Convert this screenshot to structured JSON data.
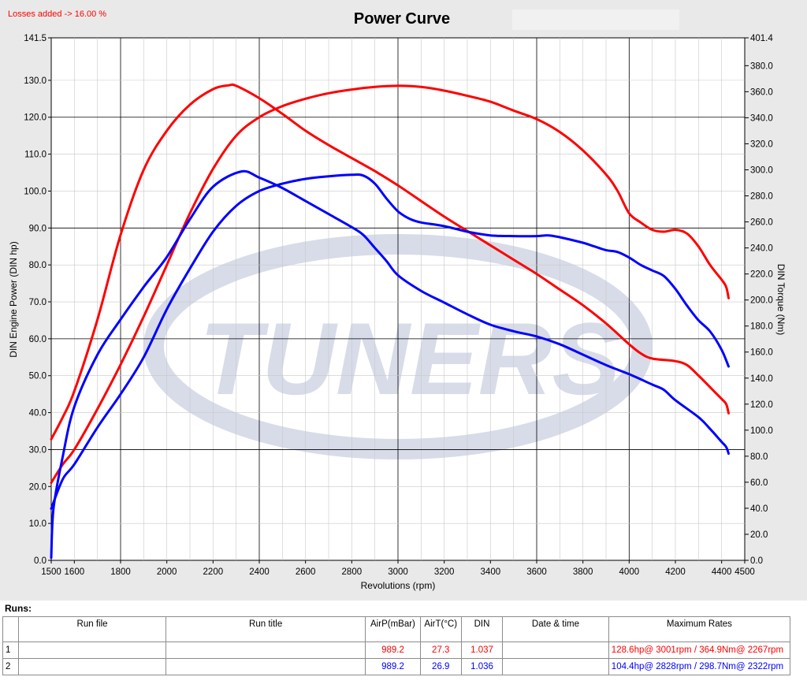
{
  "losses_note": "Losses added -> 16.00 %",
  "chart_data": {
    "type": "line",
    "title": "Power Curve",
    "xlabel": "Revolutions (rpm)",
    "ylabel_left": "DIN Engine Power (DIN hp)",
    "ylabel_right": "DIN Torque (Nm)",
    "xlim": [
      1500,
      4500
    ],
    "ylim_left": [
      0,
      141.5
    ],
    "ylim_right": [
      0,
      401.4
    ],
    "x_ticks": [
      "1500",
      "1600",
      "1800",
      "2000",
      "2200",
      "2400",
      "2600",
      "2800",
      "3000",
      "3200",
      "3400",
      "3600",
      "3800",
      "4000",
      "4200",
      "4400",
      "4500"
    ],
    "x_tick_values": [
      1500,
      1600,
      1800,
      2000,
      2200,
      2400,
      2600,
      2800,
      3000,
      3200,
      3400,
      3600,
      3800,
      4000,
      4200,
      4400,
      4500
    ],
    "y_left_ticks": [
      "0.0",
      "10.0",
      "20.0",
      "30.0",
      "40.0",
      "50.0",
      "60.0",
      "70.0",
      "80.0",
      "90.0",
      "100.0",
      "110.0",
      "120.0",
      "130.0",
      "141.5"
    ],
    "y_left_tick_values": [
      0,
      10,
      20,
      30,
      40,
      50,
      60,
      70,
      80,
      90,
      100,
      110,
      120,
      130,
      141.5
    ],
    "y_right_ticks": [
      "0.0",
      "20.0",
      "40.0",
      "60.0",
      "80.0",
      "100.0",
      "120.0",
      "140.0",
      "160.0",
      "180.0",
      "200.0",
      "220.0",
      "240.0",
      "260.0",
      "280.0",
      "300.0",
      "320.0",
      "340.0",
      "360.0",
      "380.0",
      "401.4"
    ],
    "y_right_tick_values": [
      0,
      20,
      40,
      60,
      80,
      100,
      120,
      140,
      160,
      180,
      200,
      220,
      240,
      260,
      280,
      300,
      320,
      340,
      360,
      380,
      401.4
    ],
    "grid": true,
    "series": [
      {
        "run": 1,
        "quantity": "power",
        "axis": "left",
        "color": "#ff0000",
        "points": [
          [
            1500,
            21
          ],
          [
            1550,
            26
          ],
          [
            1600,
            30
          ],
          [
            1700,
            41
          ],
          [
            1800,
            53
          ],
          [
            1900,
            66
          ],
          [
            2000,
            80
          ],
          [
            2100,
            94
          ],
          [
            2200,
            106
          ],
          [
            2300,
            115
          ],
          [
            2400,
            120
          ],
          [
            2500,
            123
          ],
          [
            2600,
            125
          ],
          [
            2700,
            126.5
          ],
          [
            2800,
            127.5
          ],
          [
            2900,
            128.2
          ],
          [
            3000,
            128.5
          ],
          [
            3100,
            128.2
          ],
          [
            3200,
            127.2
          ],
          [
            3300,
            125.8
          ],
          [
            3400,
            124.2
          ],
          [
            3500,
            121.8
          ],
          [
            3600,
            119.5
          ],
          [
            3700,
            116
          ],
          [
            3800,
            111
          ],
          [
            3900,
            104.5
          ],
          [
            3950,
            100
          ],
          [
            4000,
            94
          ],
          [
            4050,
            91.5
          ],
          [
            4100,
            89.5
          ],
          [
            4150,
            89
          ],
          [
            4200,
            89.5
          ],
          [
            4250,
            88.5
          ],
          [
            4300,
            85
          ],
          [
            4350,
            80
          ],
          [
            4400,
            76
          ],
          [
            4420,
            74
          ],
          [
            4430,
            71
          ]
        ]
      },
      {
        "run": 1,
        "quantity": "torque",
        "axis": "right",
        "color": "#ff0000",
        "points": [
          [
            1500,
            93
          ],
          [
            1550,
            110
          ],
          [
            1600,
            130
          ],
          [
            1700,
            185
          ],
          [
            1800,
            250
          ],
          [
            1900,
            300
          ],
          [
            2000,
            330
          ],
          [
            2100,
            350
          ],
          [
            2200,
            362
          ],
          [
            2267,
            364.9
          ],
          [
            2300,
            364.5
          ],
          [
            2400,
            355
          ],
          [
            2500,
            343
          ],
          [
            2600,
            330
          ],
          [
            2700,
            319
          ],
          [
            2800,
            309
          ],
          [
            2900,
            299
          ],
          [
            3000,
            288
          ],
          [
            3100,
            276
          ],
          [
            3200,
            264
          ],
          [
            3300,
            253
          ],
          [
            3400,
            242
          ],
          [
            3500,
            231
          ],
          [
            3600,
            220
          ],
          [
            3700,
            208
          ],
          [
            3800,
            196
          ],
          [
            3900,
            182
          ],
          [
            4000,
            166
          ],
          [
            4050,
            159
          ],
          [
            4100,
            155
          ],
          [
            4200,
            153
          ],
          [
            4250,
            150
          ],
          [
            4300,
            142
          ],
          [
            4350,
            133
          ],
          [
            4400,
            124
          ],
          [
            4420,
            120
          ],
          [
            4430,
            113
          ]
        ]
      },
      {
        "run": 2,
        "quantity": "power",
        "axis": "left",
        "color": "#0000ff",
        "points": [
          [
            1500,
            14
          ],
          [
            1550,
            22
          ],
          [
            1600,
            26
          ],
          [
            1700,
            36
          ],
          [
            1800,
            45
          ],
          [
            1900,
            55
          ],
          [
            2000,
            68
          ],
          [
            2100,
            79
          ],
          [
            2200,
            89
          ],
          [
            2300,
            96
          ],
          [
            2400,
            100
          ],
          [
            2500,
            102
          ],
          [
            2600,
            103.3
          ],
          [
            2700,
            104
          ],
          [
            2800,
            104.4
          ],
          [
            2850,
            104.2
          ],
          [
            2900,
            102
          ],
          [
            2950,
            98
          ],
          [
            3000,
            94.5
          ],
          [
            3050,
            92.5
          ],
          [
            3100,
            91.5
          ],
          [
            3200,
            90.5
          ],
          [
            3300,
            89
          ],
          [
            3400,
            88
          ],
          [
            3500,
            87.8
          ],
          [
            3600,
            87.8
          ],
          [
            3650,
            88
          ],
          [
            3700,
            87.5
          ],
          [
            3800,
            86
          ],
          [
            3850,
            85
          ],
          [
            3900,
            84
          ],
          [
            3950,
            83.5
          ],
          [
            4000,
            82
          ],
          [
            4050,
            80
          ],
          [
            4100,
            78.5
          ],
          [
            4150,
            77
          ],
          [
            4200,
            73.5
          ],
          [
            4250,
            69
          ],
          [
            4300,
            65
          ],
          [
            4350,
            62
          ],
          [
            4400,
            57
          ],
          [
            4430,
            52.5
          ]
        ]
      },
      {
        "run": 2,
        "quantity": "torque",
        "axis": "right",
        "color": "#0000ff",
        "points": [
          [
            1500,
            2
          ],
          [
            1510,
            40
          ],
          [
            1550,
            80
          ],
          [
            1600,
            118
          ],
          [
            1700,
            158
          ],
          [
            1800,
            185
          ],
          [
            1900,
            210
          ],
          [
            2000,
            233
          ],
          [
            2100,
            262
          ],
          [
            2200,
            287
          ],
          [
            2322,
            298.7
          ],
          [
            2400,
            294
          ],
          [
            2500,
            286
          ],
          [
            2600,
            276
          ],
          [
            2700,
            266
          ],
          [
            2800,
            256
          ],
          [
            2850,
            250
          ],
          [
            2900,
            240
          ],
          [
            2950,
            230
          ],
          [
            3000,
            219
          ],
          [
            3100,
            207
          ],
          [
            3200,
            198
          ],
          [
            3300,
            189
          ],
          [
            3400,
            181
          ],
          [
            3500,
            176
          ],
          [
            3600,
            172
          ],
          [
            3700,
            166
          ],
          [
            3800,
            158
          ],
          [
            3900,
            150
          ],
          [
            4000,
            143
          ],
          [
            4100,
            135
          ],
          [
            4150,
            131
          ],
          [
            4200,
            123
          ],
          [
            4300,
            110
          ],
          [
            4350,
            101
          ],
          [
            4400,
            91
          ],
          [
            4420,
            87
          ],
          [
            4430,
            82
          ]
        ]
      }
    ]
  },
  "runs": {
    "heading": "Runs:",
    "columns": [
      "",
      "Run file",
      "Run title",
      "AirP(mBar)",
      "AirT(°C)",
      "DIN",
      "Date & time",
      "Maximum Rates"
    ],
    "rows": [
      {
        "index": "1",
        "run_file": "",
        "run_title": "",
        "airp": "989.2",
        "airt": "27.3",
        "din": "1.037",
        "datetime": "",
        "max_rates": "128.6hp@ 3001rpm / 364.9Nm@ 2267rpm"
      },
      {
        "index": "2",
        "run_file": "",
        "run_title": "",
        "airp": "989.2",
        "airt": "26.9",
        "din": "1.036",
        "datetime": "",
        "max_rates": "104.4hp@ 2828rpm / 298.7Nm@ 2322rpm"
      }
    ]
  }
}
